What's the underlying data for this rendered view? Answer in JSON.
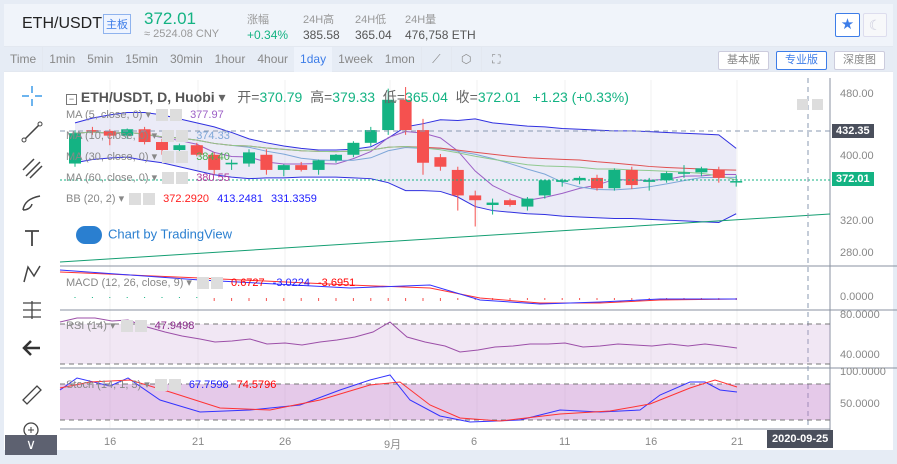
{
  "header": {
    "symbol": "ETH/USDT",
    "badge": "主板",
    "price": "372.01",
    "cny": "≈ 2524.08 CNY",
    "stats": [
      {
        "label": "涨幅",
        "value": "+0.34%"
      },
      {
        "label": "24H高",
        "value": "385.58"
      },
      {
        "label": "24H低",
        "value": "365.04"
      },
      {
        "label": "24H量",
        "value": "476,758 ETH"
      }
    ],
    "star_icon": "star-icon",
    "theme_icon": "moon-icon"
  },
  "toolbar": {
    "intervals": [
      "Time",
      "1min",
      "5min",
      "15min",
      "30min",
      "1hour",
      "4hour",
      "1day",
      "1week",
      "1mon"
    ],
    "active": "1day",
    "versions": [
      "基本版",
      "专业版",
      "深度图"
    ],
    "active_version": "专业版"
  },
  "chart": {
    "title": "ETH/USDT, D, Huobi",
    "open_label": "开=",
    "open": "370.79",
    "high_label": "高=",
    "high": "379.33",
    "low_label": "低=",
    "low": "365.04",
    "close_label": "收=",
    "close": "372.01",
    "change": "+1.23 (+0.33%)",
    "watermark": "Chart by TradingView",
    "indicators": [
      {
        "name": "MA (5, close, 0)",
        "values": [
          "377.97"
        ],
        "colors": [
          "#9c5fc6"
        ]
      },
      {
        "name": "MA (10, close, 0)",
        "values": [
          "374.33"
        ],
        "colors": [
          "#7ea7d8"
        ]
      },
      {
        "name": "MA (30, close, 0)",
        "values": [
          "384.40"
        ],
        "colors": [
          "#4caf50"
        ]
      },
      {
        "name": "MA (60, close, 0)",
        "values": [
          "380.55"
        ],
        "colors": [
          "#b03a9a"
        ]
      },
      {
        "name": "BB (20, 2)",
        "values": [
          "372.2920",
          "413.2481",
          "331.3359"
        ],
        "colors": [
          "#ff2020",
          "#2020ff",
          "#2020ff"
        ]
      }
    ],
    "macd": {
      "name": "MACD (12, 26, close, 9)",
      "values": [
        "0.6727",
        "-3.0224",
        "-3.6951"
      ]
    },
    "rsi": {
      "name": "RSI (14)",
      "value": "47.9498"
    },
    "stoch": {
      "name": "Stoch (14, 1, 3)",
      "values": [
        "67.7598",
        "74.5796"
      ]
    },
    "price_axis": [
      "480.00",
      "400.00",
      "320.00",
      "280.00"
    ],
    "crosshair_price": "432.35",
    "last_price": "372.01",
    "macd_axis": [
      "0.0000"
    ],
    "rsi_axis": [
      "80.0000",
      "40.0000"
    ],
    "stoch_axis": [
      "100.0000",
      "50.0000"
    ],
    "time_axis": [
      "16",
      "21",
      "26",
      "9月",
      "6",
      "11",
      "16",
      "21"
    ],
    "crosshair_date": "2020-09-25",
    "colors": {
      "up": "#14b383",
      "down": "#f5514f"
    }
  },
  "chart_data": {
    "type": "candlestick",
    "x_start": "2020-08-14",
    "x_end": "2020-09-21",
    "ylim": [
      260,
      500
    ],
    "ohlc": [
      [
        394,
        436,
        390,
        432
      ],
      [
        436,
        440,
        430,
        435
      ],
      [
        435,
        437,
        417,
        429
      ],
      [
        429,
        438,
        425,
        437
      ],
      [
        437,
        440,
        418,
        421
      ],
      [
        421,
        425,
        405,
        411
      ],
      [
        411,
        419,
        398,
        417
      ],
      [
        417,
        420,
        403,
        405
      ],
      [
        405,
        408,
        380,
        386
      ],
      [
        393,
        399,
        386,
        395
      ],
      [
        394,
        412,
        390,
        408
      ],
      [
        405,
        412,
        380,
        386
      ],
      [
        386,
        393,
        378,
        392
      ],
      [
        392,
        396,
        384,
        386
      ],
      [
        386,
        399,
        380,
        398
      ],
      [
        398,
        406,
        395,
        405
      ],
      [
        405,
        422,
        402,
        420
      ],
      [
        420,
        440,
        416,
        436
      ],
      [
        436,
        488,
        430,
        474
      ],
      [
        474,
        490,
        430,
        436
      ],
      [
        436,
        450,
        380,
        395
      ],
      [
        402,
        406,
        385,
        390
      ],
      [
        386,
        390,
        335,
        354
      ],
      [
        354,
        360,
        315,
        348
      ],
      [
        342,
        350,
        330,
        345
      ],
      [
        348,
        350,
        340,
        342
      ],
      [
        340,
        352,
        335,
        350
      ],
      [
        354,
        373,
        350,
        373
      ],
      [
        371,
        375,
        365,
        373
      ],
      [
        373,
        378,
        368,
        376
      ],
      [
        376,
        380,
        360,
        363
      ],
      [
        363,
        388,
        360,
        386
      ],
      [
        386,
        390,
        362,
        367
      ],
      [
        371,
        376,
        360,
        373
      ],
      [
        373,
        384,
        370,
        382
      ],
      [
        383,
        392,
        376,
        383
      ],
      [
        383,
        390,
        378,
        388
      ],
      [
        386,
        390,
        370,
        376
      ],
      [
        370.79,
        379.33,
        365.04,
        372.01
      ]
    ]
  }
}
